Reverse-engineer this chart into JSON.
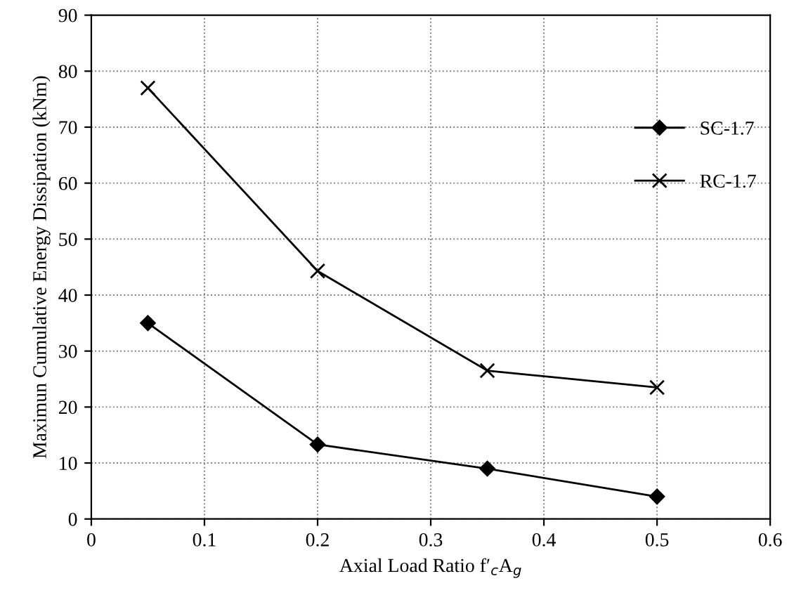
{
  "chart_data": {
    "type": "line",
    "xlabel": "Axial Load Ratio f′$_{c}$A$_{g}$",
    "ylabel": "Maximun Cumulative Energy Dissipation (kNm)",
    "x": [
      0.05,
      0.2,
      0.35,
      0.5
    ],
    "series": [
      {
        "name": "SC-1.7",
        "color": "#000000",
        "values": [
          35,
          13.3,
          9,
          4
        ],
        "marker": "diamond"
      },
      {
        "name": "RC-1.7",
        "color": "#000000",
        "values": [
          77,
          44.3,
          26.5,
          23.5
        ],
        "marker": "cross"
      }
    ],
    "xlim": [
      0,
      0.6
    ],
    "xticks": [
      0,
      0.1,
      0.2,
      0.3,
      0.4,
      0.5,
      0.6
    ],
    "ylim": [
      0,
      90
    ],
    "yticks": [
      0,
      10,
      20,
      30,
      40,
      50,
      60,
      70,
      80,
      90
    ],
    "grid": true,
    "legend": "right",
    "line_style": "solid"
  }
}
